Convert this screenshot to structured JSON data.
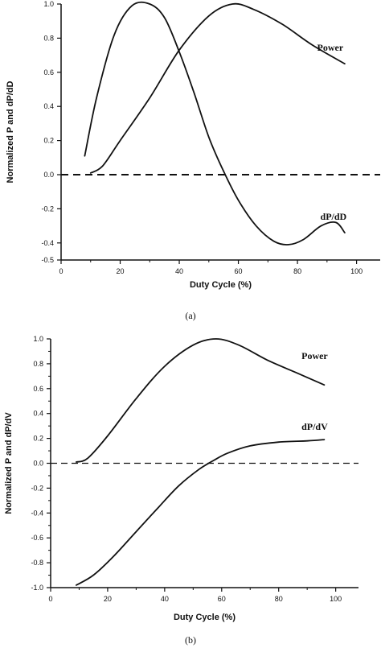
{
  "chart_data": [
    {
      "type": "line",
      "caption": "(a)",
      "xlabel": "Duty Cycle (%)",
      "ylabel": "Normalized P and dP/dD",
      "xlim": [
        0,
        108
      ],
      "ylim": [
        -0.5,
        1.0
      ],
      "xticks": [
        0,
        20,
        40,
        60,
        80,
        100
      ],
      "yticks": [
        -0.5,
        -0.4,
        -0.2,
        0.0,
        0.2,
        0.4,
        0.6,
        0.8,
        1.0
      ],
      "xtick_labels": [
        "0",
        "20",
        "40",
        "60",
        "80",
        "100"
      ],
      "ytick_labels": [
        "-0.5",
        "-0.4",
        "-0.2",
        "0.0",
        "0.2",
        "0.4",
        "0.6",
        "0.8",
        "1.0"
      ],
      "zero_line": 0.0,
      "series": [
        {
          "name": "Power",
          "x": [
            10,
            14,
            20,
            30,
            40,
            50,
            58,
            65,
            75,
            85,
            96
          ],
          "y": [
            0.01,
            0.05,
            0.2,
            0.45,
            0.73,
            0.93,
            1.0,
            0.97,
            0.88,
            0.76,
            0.65
          ]
        },
        {
          "name": "dP/dD",
          "x": [
            8,
            12,
            18,
            24,
            30,
            35,
            40,
            45,
            50,
            55,
            60,
            66,
            72,
            77,
            82,
            88,
            93,
            96
          ],
          "y": [
            0.11,
            0.45,
            0.82,
            0.99,
            1.0,
            0.92,
            0.72,
            0.48,
            0.22,
            0.02,
            -0.15,
            -0.3,
            -0.39,
            -0.41,
            -0.38,
            -0.3,
            -0.28,
            -0.34
          ]
        }
      ]
    },
    {
      "type": "line",
      "caption": "(b)",
      "xlabel": "Duty Cycle (%)",
      "ylabel": "Normalized P and dP/dV",
      "xlim": [
        0,
        108
      ],
      "ylim": [
        -1.0,
        1.0
      ],
      "xticks": [
        0,
        20,
        40,
        60,
        80,
        100
      ],
      "yticks": [
        -1.0,
        -0.8,
        -0.6,
        -0.4,
        -0.2,
        0.0,
        0.2,
        0.4,
        0.6,
        0.8,
        1.0
      ],
      "xtick_labels": [
        "0",
        "20",
        "40",
        "60",
        "80",
        "100"
      ],
      "ytick_labels": [
        "-1.0",
        "-0.8",
        "-0.6",
        "-0.4",
        "-0.2",
        "0.0",
        "0.2",
        "0.4",
        "0.6",
        "0.8",
        "1.0"
      ],
      "zero_line": 0.0,
      "series": [
        {
          "name": "Power",
          "x": [
            9,
            13,
            20,
            30,
            40,
            50,
            58,
            66,
            76,
            86,
            96
          ],
          "y": [
            0.01,
            0.04,
            0.22,
            0.52,
            0.78,
            0.95,
            1.0,
            0.95,
            0.83,
            0.73,
            0.63
          ]
        },
        {
          "name": "dP/dV",
          "x": [
            9,
            15,
            22,
            30,
            38,
            45,
            52,
            57,
            62,
            70,
            80,
            90,
            96
          ],
          "y": [
            -0.98,
            -0.9,
            -0.75,
            -0.55,
            -0.35,
            -0.18,
            -0.05,
            0.02,
            0.08,
            0.14,
            0.17,
            0.18,
            0.19
          ]
        }
      ]
    }
  ]
}
